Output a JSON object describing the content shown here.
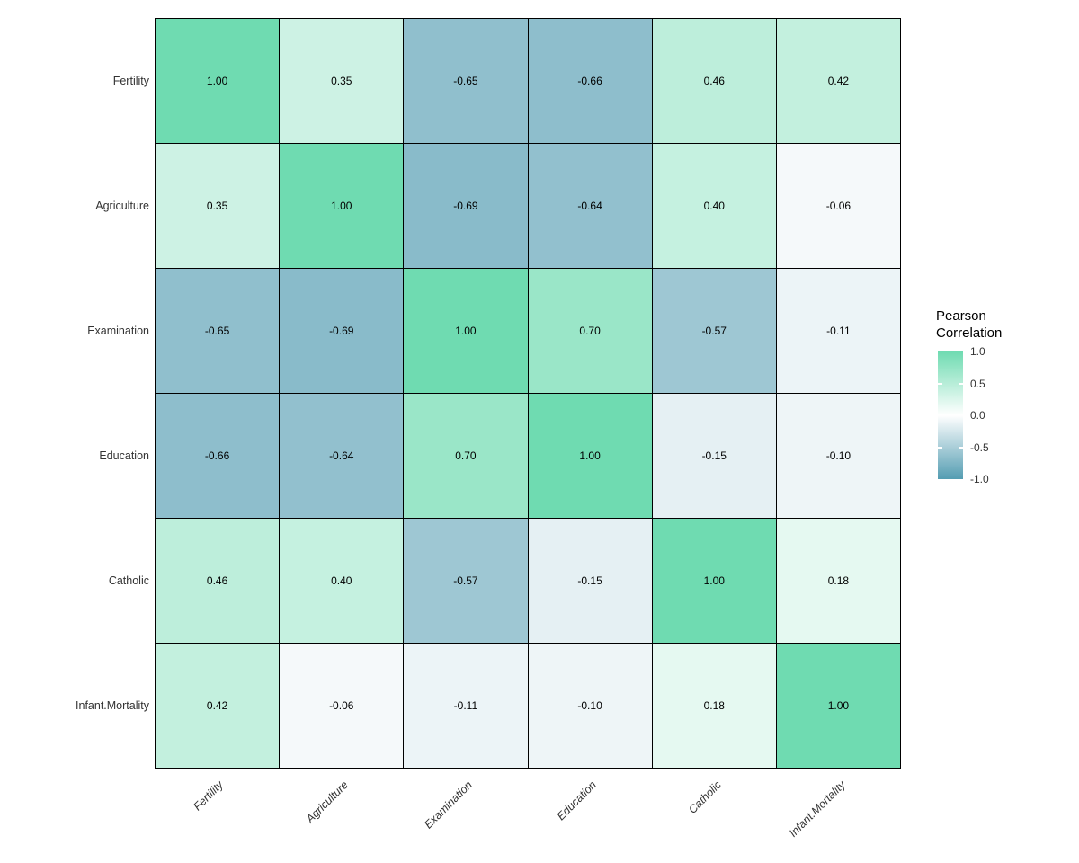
{
  "chart_data": {
    "type": "heatmap",
    "title": "",
    "variables": [
      "Fertility",
      "Agriculture",
      "Examination",
      "Education",
      "Catholic",
      "Infant.Mortality"
    ],
    "matrix": [
      [
        1.0,
        0.35,
        -0.65,
        -0.66,
        0.46,
        0.42
      ],
      [
        0.35,
        1.0,
        -0.69,
        -0.64,
        0.4,
        -0.06
      ],
      [
        -0.65,
        -0.69,
        1.0,
        0.7,
        -0.57,
        -0.11
      ],
      [
        -0.66,
        -0.64,
        0.7,
        1.0,
        -0.15,
        -0.1
      ],
      [
        0.46,
        0.4,
        -0.57,
        -0.15,
        1.0,
        0.18
      ],
      [
        0.42,
        -0.06,
        -0.11,
        -0.1,
        0.18,
        1.0
      ]
    ],
    "value_decimals": 2,
    "value_range": [
      -1,
      1
    ],
    "legend": {
      "title_line1": "Pearson",
      "title_line2": "Correlation",
      "ticks": [
        "1.0",
        "0.5",
        "0.0",
        "-0.5",
        "-1.0"
      ],
      "tick_values": [
        1.0,
        0.5,
        0.0,
        -0.5,
        -1.0
      ],
      "position": "right"
    },
    "colors": {
      "high": "#6FDBB1",
      "mid": "#FFFFFF",
      "low": "#549DB2",
      "cell_border": "#000000",
      "cell_text": "#000000",
      "axis_text": "#333333"
    },
    "grid": false
  }
}
